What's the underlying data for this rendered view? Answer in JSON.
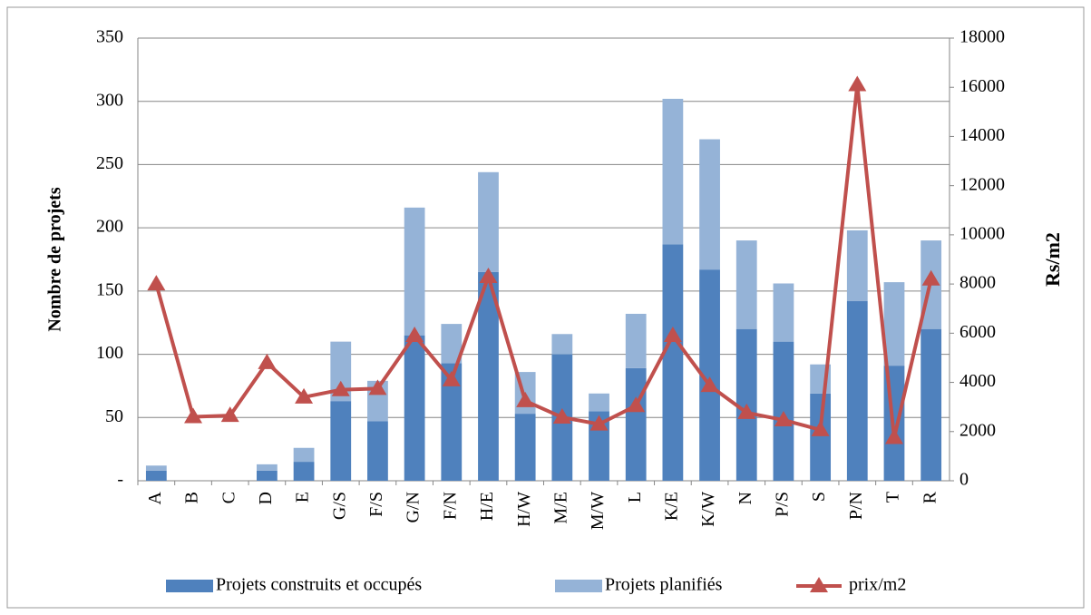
{
  "chart_data": {
    "type": "bar",
    "stacked": true,
    "grid": true,
    "legend": "bottom",
    "ylabel": "Nombre de projets",
    "y2label": "Rs/m2",
    "categories": [
      "A",
      "B",
      "C",
      "D",
      "E",
      "G/S",
      "F/S",
      "G/N",
      "F/N",
      "H/E",
      "H/W",
      "M/E",
      "M/W",
      "L",
      "K/E",
      "K/W",
      "N",
      "P/S",
      "S",
      "P/N",
      "T",
      "R"
    ],
    "series": [
      {
        "name": "Projets construits et occupés",
        "color": "#4f81bd",
        "type": "bar",
        "values": [
          8,
          0,
          0,
          8,
          15,
          63,
          47,
          115,
          93,
          165,
          53,
          100,
          55,
          89,
          187,
          167,
          120,
          110,
          69,
          142,
          91,
          120
        ]
      },
      {
        "name": "Projets planifiés",
        "color": "#95b3d7",
        "type": "bar",
        "values": [
          4,
          0,
          0,
          5,
          11,
          47,
          32,
          101,
          31,
          79,
          33,
          16,
          14,
          43,
          115,
          103,
          70,
          46,
          23,
          56,
          66,
          70
        ]
      },
      {
        "name": "prix/m2",
        "color": "#c0504d",
        "type": "line",
        "axis": "y2",
        "values": [
          8000,
          2600,
          2650,
          4800,
          3400,
          3700,
          3750,
          5900,
          4100,
          8300,
          3250,
          2580,
          2300,
          3050,
          5900,
          3870,
          2770,
          2470,
          2070,
          16100,
          1750,
          8200
        ]
      }
    ],
    "ylim": [
      0,
      350
    ],
    "yticks": [
      {
        "value": 0,
        "label": "-"
      },
      50,
      100,
      150,
      200,
      250,
      300,
      350
    ],
    "y2lim": [
      0,
      18000
    ],
    "y2ticks": [
      0,
      2000,
      4000,
      6000,
      8000,
      10000,
      12000,
      14000,
      16000,
      18000
    ]
  }
}
